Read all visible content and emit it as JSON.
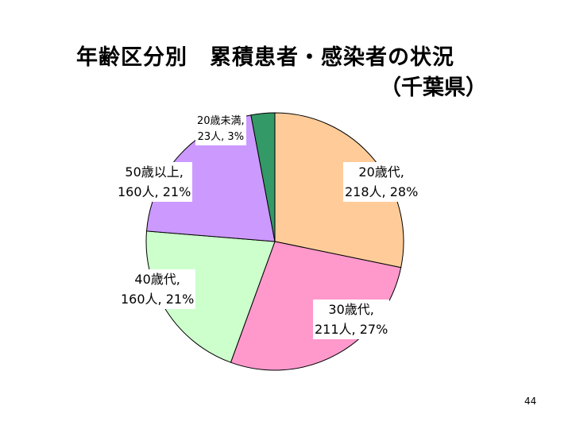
{
  "page": {
    "title": "年齢区分別　累積患者・感染者の状況",
    "subtitle": "（千葉県）",
    "page_number": "44"
  },
  "chart_data": {
    "type": "pie",
    "title": "年齢区分別　累積患者・感染者の状況（千葉県）",
    "start": "12 o'clock",
    "direction": "clockwise",
    "slices": [
      {
        "category": "20歳代",
        "count": 218,
        "percent": 28,
        "color": "#FFCC99",
        "label_line1": "20歳代,",
        "label_line2": "218人, 28%"
      },
      {
        "category": "30歳代",
        "count": 211,
        "percent": 27,
        "color": "#FF99CC",
        "label_line1": "30歳代,",
        "label_line2": "211人, 27%"
      },
      {
        "category": "40歳代",
        "count": 160,
        "percent": 21,
        "color": "#CCFFCC",
        "label_line1": "40歳代,",
        "label_line2": "160人, 21%"
      },
      {
        "category": "50歳以上",
        "count": 160,
        "percent": 21,
        "color": "#CC99FF",
        "label_line1": "50歳以上,",
        "label_line2": "160人, 21%"
      },
      {
        "category": "20歳未満",
        "count": 23,
        "percent": 3,
        "color": "#339966",
        "label_line1": "20歳未満,",
        "label_line2": "23人, 3%"
      }
    ]
  }
}
